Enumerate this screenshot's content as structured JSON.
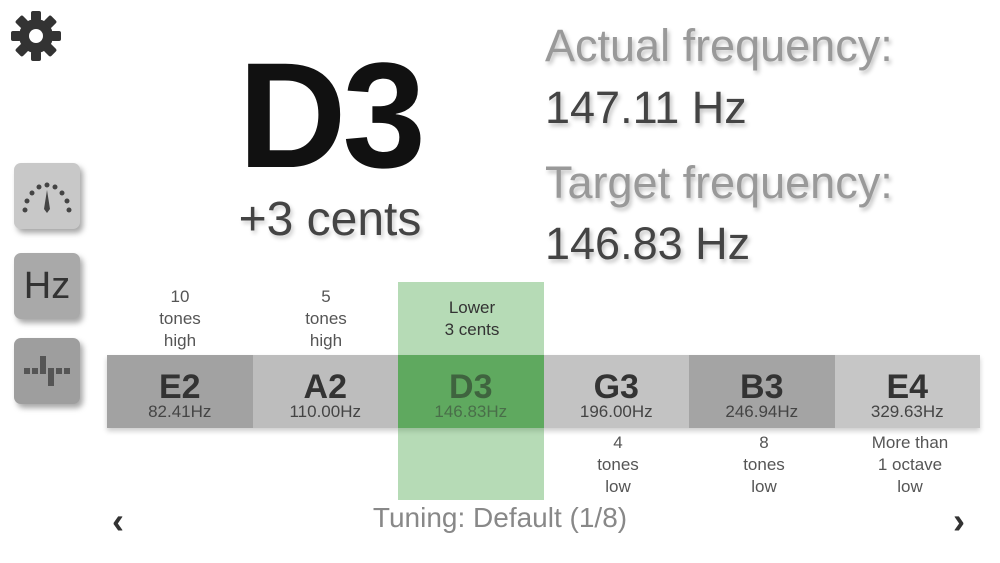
{
  "current": {
    "note": "D3",
    "cents": "+3 cents"
  },
  "frequencies": {
    "actual_label": "Actual frequency:",
    "actual_value": "147.11 Hz",
    "target_label": "Target frequency:",
    "target_value": "146.83 Hz"
  },
  "sidebar": {
    "gauge_icon": "gauge-icon",
    "hz_label": "Hz",
    "bars_icon": "bars-icon",
    "gear_icon": "gear-icon"
  },
  "strings": [
    {
      "note": "E2",
      "freq": "82.41Hz",
      "annotation": [
        "10",
        "tones",
        "high"
      ],
      "color": "#a2a2a2"
    },
    {
      "note": "A2",
      "freq": "110.00Hz",
      "annotation": [
        "5",
        "tones",
        "high"
      ],
      "color": "#bdbdbd"
    },
    {
      "note": "D3",
      "freq": "146.83Hz",
      "annotation": [
        "Lower",
        "3 cents"
      ],
      "color": "#6aaa6a"
    },
    {
      "note": "G3",
      "freq": "196.00Hz",
      "annotation": [
        "4",
        "tones",
        "low"
      ],
      "color": "#c3c3c3"
    },
    {
      "note": "B3",
      "freq": "246.94Hz",
      "annotation": [
        "8",
        "tones",
        "low"
      ],
      "color": "#a4a4a4"
    },
    {
      "note": "E4",
      "freq": "329.63Hz",
      "annotation": [
        "More than",
        "1 octave",
        "low"
      ],
      "color": "#c6c6c6"
    }
  ],
  "tuning": "Tuning: Default (1/8)",
  "nav": {
    "prev": "‹",
    "next": "›"
  },
  "highlight_color": "#50aa50"
}
